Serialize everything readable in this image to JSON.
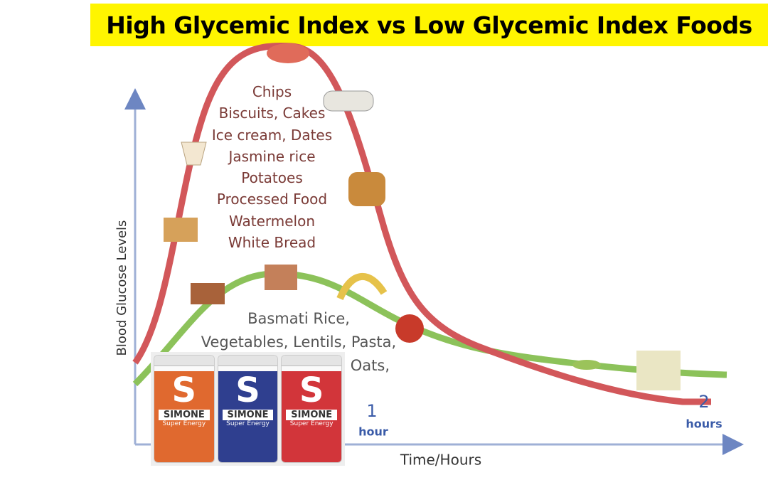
{
  "header": {
    "title": "High Glycemic Index vs Low Glycemic Index Foods"
  },
  "axes": {
    "y_label": "Blood Glucose Levels",
    "x_label": "Time/Hours"
  },
  "high_gi_foods": [
    "Chips",
    "Biscuits, Cakes",
    "Ice cream, Dates",
    "Jasmine rice",
    "Potatoes",
    "Processed Food",
    "Watermelon",
    "White Bread"
  ],
  "low_gi_foods": [
    "Basmati Rice,",
    "Vegetables, Lentils, Pasta,",
    "Oats,"
  ],
  "time_markers": [
    {
      "number": "1",
      "unit": "hour"
    },
    {
      "number": "2",
      "unit": "hours"
    }
  ],
  "products": [
    {
      "letter": "S",
      "brand": "SIMONE",
      "name": "Super Energy"
    },
    {
      "letter": "S",
      "brand": "SIMONE",
      "name": "Super Energy"
    },
    {
      "letter": "S",
      "brand": "SIMONE",
      "name": "Super Energy"
    }
  ]
}
